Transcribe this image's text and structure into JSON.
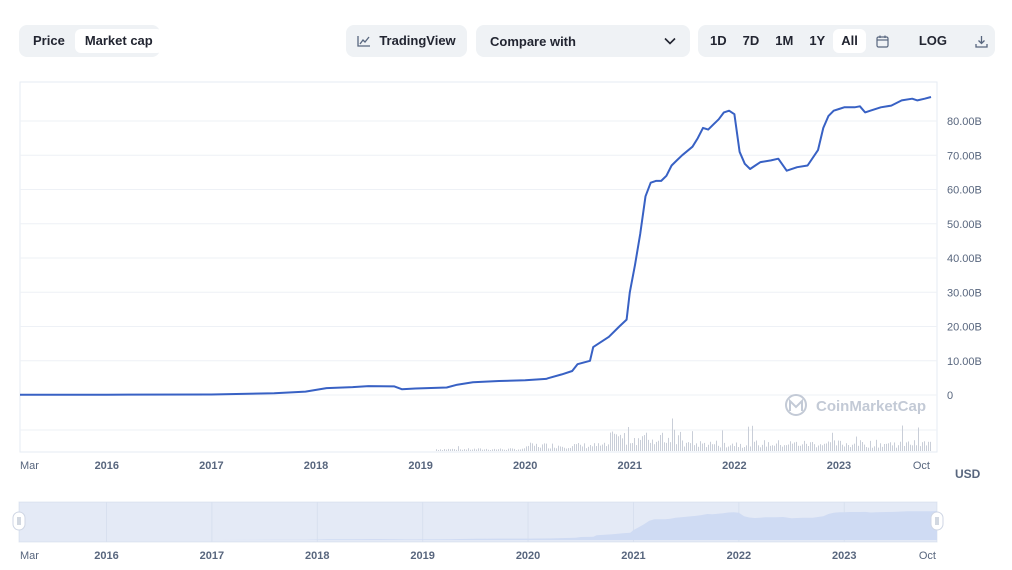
{
  "toolbar": {
    "chart_types": [
      {
        "label": "Price",
        "active": false
      },
      {
        "label": "Market cap",
        "active": true
      }
    ],
    "tradingview_label": "TradingView",
    "compare_label": "Compare with",
    "ranges": [
      {
        "label": "1D",
        "active": false
      },
      {
        "label": "7D",
        "active": false
      },
      {
        "label": "1M",
        "active": false
      },
      {
        "label": "1Y",
        "active": false
      },
      {
        "label": "All",
        "active": true
      }
    ],
    "log_label": "LOG",
    "icons": {
      "tradingview": "chart-line-icon",
      "compare": "chevron-down-icon",
      "calendar": "calendar-icon",
      "download": "download-icon"
    }
  },
  "watermark": "CoinMarketCap",
  "chart_data": {
    "type": "line",
    "y_ticks": [
      "80.00B",
      "70.00B",
      "60.00B",
      "50.00B",
      "40.00B",
      "30.00B",
      "20.00B",
      "10.00B",
      "0"
    ],
    "y_tick_values": [
      80,
      70,
      60,
      50,
      40,
      30,
      20,
      10,
      0
    ],
    "ylim": [
      0,
      90
    ],
    "x_ticks": [
      {
        "label": "Mar",
        "year": 2015.17
      },
      {
        "label": "2016",
        "year": 2016
      },
      {
        "label": "2017",
        "year": 2017
      },
      {
        "label": "2018",
        "year": 2018
      },
      {
        "label": "2019",
        "year": 2019
      },
      {
        "label": "2020",
        "year": 2020
      },
      {
        "label": "2021",
        "year": 2021
      },
      {
        "label": "2022",
        "year": 2022
      },
      {
        "label": "2023",
        "year": 2023
      },
      {
        "label": "Oct",
        "year": 2023.75
      }
    ],
    "currency_label": "USD",
    "series": [
      {
        "color": "#3861c4",
        "x": [
          2015.17,
          2016.0,
          2017.0,
          2017.6,
          2017.9,
          2018.1,
          2018.35,
          2018.5,
          2018.75,
          2018.82,
          2018.95,
          2019.25,
          2019.35,
          2019.5,
          2019.75,
          2020.0,
          2020.2,
          2020.22,
          2020.35,
          2020.45,
          2020.5,
          2020.62,
          2020.65,
          2020.8,
          2020.9,
          2020.97,
          2021.0,
          2021.05,
          2021.1,
          2021.15,
          2021.2,
          2021.25,
          2021.3,
          2021.35,
          2021.4,
          2021.45,
          2021.5,
          2021.6,
          2021.65,
          2021.7,
          2021.75,
          2021.8,
          2021.85,
          2021.9,
          2021.95,
          2022.0,
          2022.05,
          2022.1,
          2022.15,
          2022.2,
          2022.25,
          2022.35,
          2022.42,
          2022.5,
          2022.6,
          2022.7,
          2022.8,
          2022.85,
          2022.9,
          2022.95,
          2023.0,
          2023.05,
          2023.1,
          2023.15,
          2023.2,
          2023.25,
          2023.3,
          2023.4,
          2023.5,
          2023.6,
          2023.7,
          2023.75,
          2023.82,
          2023.88
        ],
        "values": [
          0.1,
          0.1,
          0.15,
          0.5,
          1.0,
          2.0,
          2.3,
          2.6,
          2.5,
          1.7,
          1.9,
          2.2,
          3.0,
          3.7,
          4.1,
          4.3,
          4.7,
          4.9,
          6.0,
          7.0,
          9.0,
          10.0,
          14.0,
          17.0,
          20.0,
          22.0,
          30.0,
          38.0,
          47.0,
          58.0,
          62.0,
          62.5,
          62.5,
          64.0,
          67.0,
          68.5,
          70.0,
          72.5,
          75.0,
          78.0,
          77.5,
          79.0,
          80.5,
          82.5,
          83.0,
          82.0,
          71.0,
          67.5,
          66.0,
          67.0,
          68.0,
          68.5,
          69.0,
          65.5,
          66.5,
          67.0,
          71.5,
          78.0,
          81.5,
          83.0,
          83.5,
          84.0,
          84.0,
          84.0,
          84.3,
          82.5,
          83.0,
          84.0,
          84.5,
          86.0,
          86.5,
          86.0,
          86.5,
          87.0
        ]
      }
    ],
    "grid": true,
    "navigator": {
      "x_ticks": [
        "Mar",
        "2016",
        "2017",
        "2018",
        "2019",
        "2020",
        "2021",
        "2022",
        "2023",
        "Oct"
      ]
    }
  }
}
